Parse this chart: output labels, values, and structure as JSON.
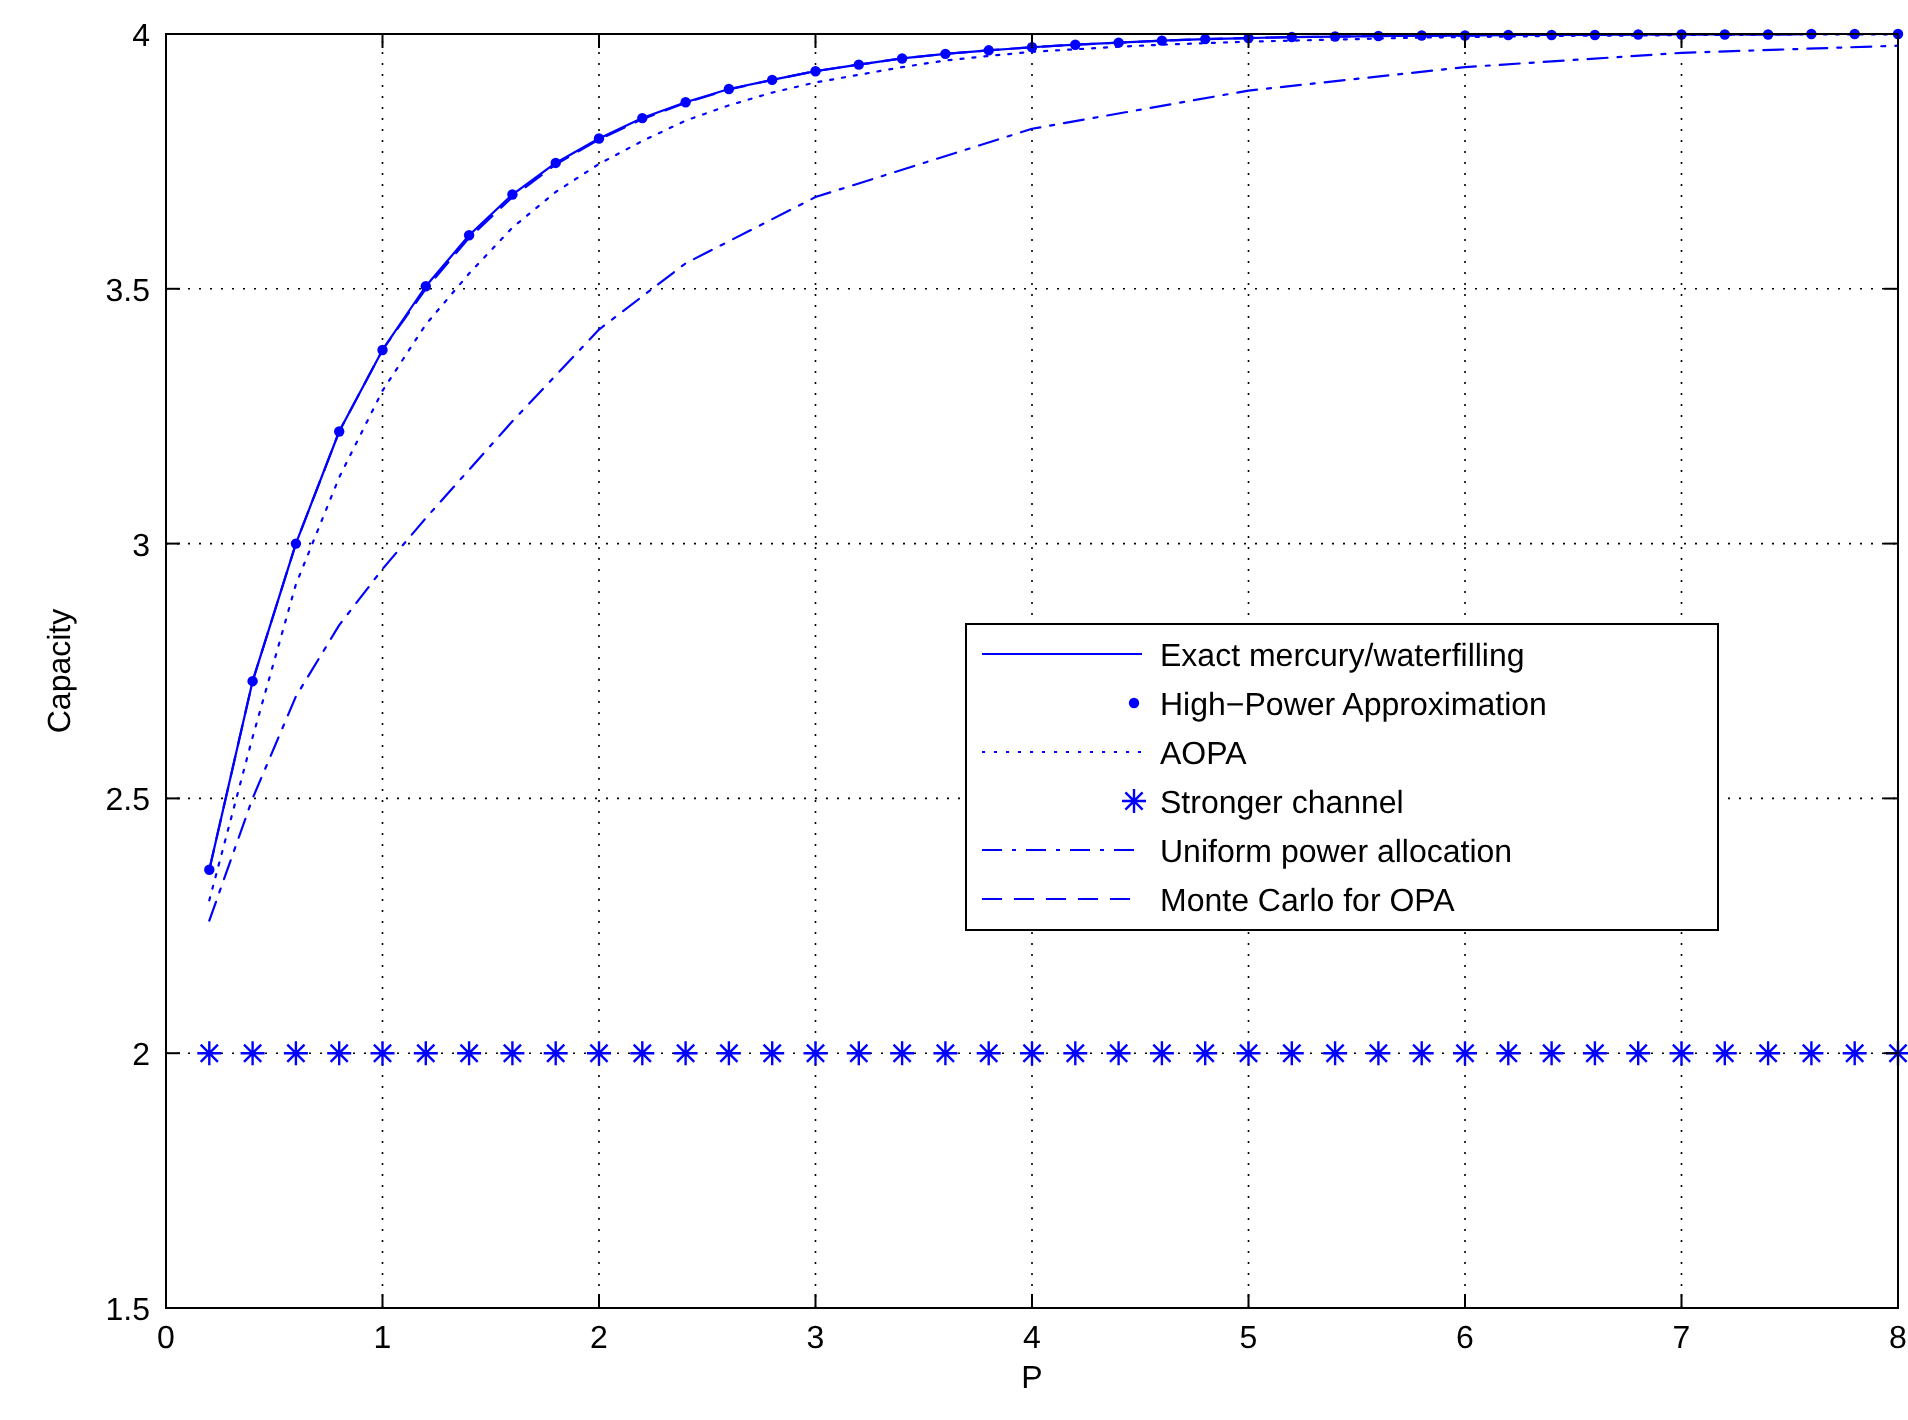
{
  "chart_data": {
    "type": "line",
    "xlabel": "P",
    "ylabel": "Capacity",
    "xlim": [
      0,
      8
    ],
    "ylim": [
      1.5,
      4
    ],
    "xticks": [
      0,
      1,
      2,
      3,
      4,
      5,
      6,
      7,
      8
    ],
    "yticks": [
      1.5,
      2,
      2.5,
      3,
      3.5,
      4
    ],
    "grid": true,
    "legend": "right",
    "x": [
      0.2,
      0.4,
      0.6,
      0.8,
      1,
      1.2,
      1.4,
      1.6,
      1.8,
      2,
      2.2,
      2.4,
      2.6,
      2.8,
      3,
      3.2,
      3.4,
      3.6,
      3.8,
      4,
      4.2,
      4.4,
      4.6,
      4.8,
      5,
      5.2,
      5.4,
      5.6,
      5.8,
      6,
      6.2,
      6.4,
      6.6,
      6.8,
      7,
      7.2,
      7.4,
      7.6,
      7.8,
      8
    ],
    "series": [
      {
        "name": "Exact mercury/waterfilling",
        "color": "#0000ff",
        "type": "line",
        "line_style": "solid",
        "marker": "none",
        "values": [
          2.36,
          2.73,
          3.0,
          3.22,
          3.38,
          3.505,
          3.605,
          3.685,
          3.747,
          3.795,
          3.835,
          3.866,
          3.892,
          3.91,
          3.927,
          3.94,
          3.952,
          3.961,
          3.968,
          3.974,
          3.979,
          3.983,
          3.987,
          3.99,
          3.992,
          3.994,
          3.995,
          3.996,
          3.997,
          3.997,
          3.998,
          3.998,
          3.998,
          3.999,
          3.999,
          3.999,
          3.999,
          4.0,
          4.0,
          4.0
        ]
      },
      {
        "name": "High−Power Approximation",
        "color": "#0000ff",
        "type": "scatter",
        "marker": "circle",
        "values": [
          2.36,
          2.73,
          3.0,
          3.22,
          3.38,
          3.505,
          3.605,
          3.685,
          3.747,
          3.795,
          3.835,
          3.866,
          3.892,
          3.91,
          3.927,
          3.94,
          3.952,
          3.961,
          3.968,
          3.974,
          3.979,
          3.983,
          3.987,
          3.99,
          3.992,
          3.994,
          3.995,
          3.996,
          3.997,
          3.997,
          3.998,
          3.998,
          3.998,
          3.999,
          3.999,
          3.999,
          3.999,
          4.0,
          4.0,
          4.0
        ]
      },
      {
        "name": "AOPA",
        "color": "#0000ff",
        "type": "line",
        "line_style": "dotted",
        "marker": "none",
        "values": [
          2.3,
          2.62,
          2.92,
          3.13,
          3.3,
          3.43,
          3.53,
          3.62,
          3.69,
          3.745,
          3.79,
          3.83,
          3.86,
          3.885,
          3.905,
          3.92,
          3.935,
          3.948,
          3.957,
          3.965,
          3.97,
          3.975,
          3.979,
          3.982,
          3.985,
          3.987,
          3.989,
          3.991,
          3.993,
          3.994,
          3.995,
          3.996,
          3.997,
          3.997,
          3.998,
          3.998,
          3.999,
          3.999,
          3.999,
          3.999
        ]
      },
      {
        "name": "Stronger channel",
        "color": "#0000ff",
        "type": "scatter",
        "marker": "cross",
        "values": [
          2,
          2,
          2,
          2,
          2,
          2,
          2,
          2,
          2,
          2,
          2,
          2,
          2,
          2,
          2,
          2,
          2,
          2,
          2,
          2,
          2,
          2,
          2,
          2,
          2,
          2,
          2,
          2,
          2,
          2,
          2,
          2,
          2,
          2,
          2,
          2,
          2,
          2,
          2,
          2
        ]
      },
      {
        "name": "Uniform power allocation",
        "color": "#0000ff",
        "type": "line",
        "line_style": "dashdot",
        "marker": "none",
        "x": [
          0.2,
          0.4,
          0.6,
          0.8,
          1,
          1.2,
          1.4,
          1.6,
          1.8,
          2,
          2.4,
          3,
          4,
          5,
          6,
          7,
          8
        ],
        "values": [
          2.26,
          2.5,
          2.7,
          2.84,
          2.95,
          3.05,
          3.145,
          3.24,
          3.33,
          3.42,
          3.55,
          3.68,
          3.814,
          3.889,
          3.935,
          3.963,
          3.977
        ]
      },
      {
        "name": "Monte Carlo for OPA",
        "color": "#0000ff",
        "type": "line",
        "line_style": "dashed",
        "marker": "none",
        "values": [
          2.36,
          2.73,
          3.0,
          3.22,
          3.38,
          3.5,
          3.6,
          3.68,
          3.744,
          3.793,
          3.833,
          3.865,
          3.891,
          3.91,
          3.927,
          3.94,
          3.952,
          3.961,
          3.968,
          3.974,
          3.979,
          3.983,
          3.987,
          3.99,
          3.992,
          3.994,
          3.995,
          3.996,
          3.997,
          3.997,
          3.998,
          3.998,
          3.998,
          3.999,
          3.999,
          3.999,
          3.999,
          4.0,
          4.0,
          4.0
        ]
      }
    ]
  }
}
